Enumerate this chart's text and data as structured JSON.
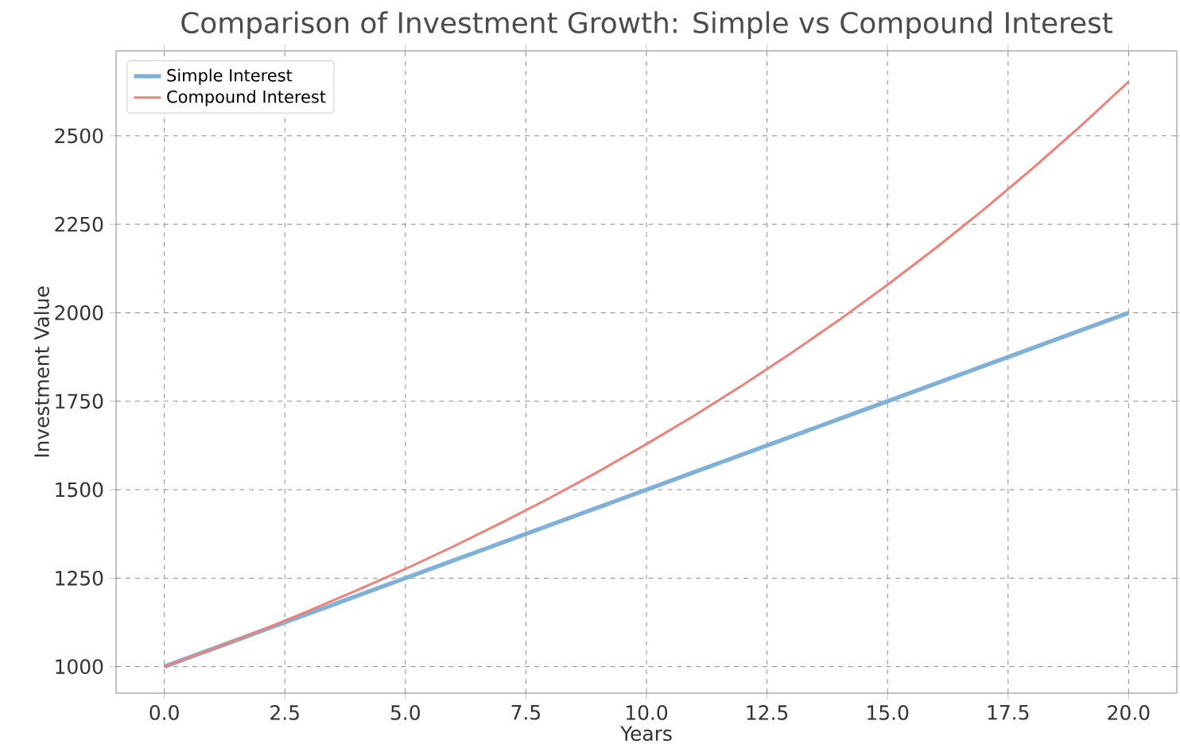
{
  "chart_data": {
    "type": "line",
    "title": "Comparison of Investment Growth: Simple vs Compound Interest",
    "xlabel": "Years",
    "ylabel": "Investment Value",
    "x": [
      0,
      1,
      2,
      3,
      4,
      5,
      6,
      7,
      8,
      9,
      10,
      11,
      12,
      13,
      14,
      15,
      16,
      17,
      18,
      19,
      20
    ],
    "series": [
      {
        "name": "Simple Interest",
        "color": "#7fb1d8",
        "values": [
          1000,
          1050,
          1100,
          1150,
          1200,
          1250,
          1300,
          1350,
          1400,
          1450,
          1500,
          1550,
          1600,
          1650,
          1700,
          1750,
          1800,
          1850,
          1900,
          1950,
          2000
        ]
      },
      {
        "name": "Compound Interest",
        "color": "#f08078",
        "values": [
          1000,
          1050,
          1102,
          1158,
          1216,
          1276,
          1340,
          1407,
          1477,
          1551,
          1629,
          1710,
          1796,
          1886,
          1980,
          2079,
          2183,
          2292,
          2407,
          2527,
          2653
        ]
      }
    ],
    "xlim": [
      -1,
      21
    ],
    "ylim": [
      925,
      2740
    ],
    "xticks": [
      {
        "value": 0,
        "label": "0.0"
      },
      {
        "value": 2.5,
        "label": "2.5"
      },
      {
        "value": 5,
        "label": "5.0"
      },
      {
        "value": 7.5,
        "label": "7.5"
      },
      {
        "value": 10,
        "label": "10.0"
      },
      {
        "value": 12.5,
        "label": "12.5"
      },
      {
        "value": 15,
        "label": "15.0"
      },
      {
        "value": 17.5,
        "label": "17.5"
      },
      {
        "value": 20,
        "label": "20.0"
      }
    ],
    "yticks": [
      1000,
      1250,
      1500,
      1750,
      2000,
      2250,
      2500
    ],
    "grid": true,
    "legend": "top left",
    "marker": "none",
    "line_style": "solid"
  }
}
